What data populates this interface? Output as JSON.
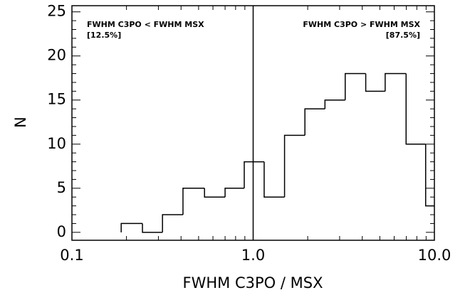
{
  "chart_data": {
    "type": "histogram",
    "xlabel": "FWHM C3PO / MSX",
    "ylabel": "N",
    "bins": [
      0.187,
      0.245,
      0.316,
      0.41,
      0.539,
      0.7,
      0.893,
      1.15,
      1.49,
      1.93,
      2.49,
      3.22,
      4.18,
      5.35,
      6.98,
      8.95,
      11.6
    ],
    "values": [
      1,
      0,
      2,
      5,
      4,
      5,
      8,
      4,
      11,
      14,
      15,
      18,
      16,
      18,
      10,
      3
    ],
    "color": "#000000",
    "xlog": true,
    "xlim": [
      0.1,
      10.0
    ],
    "ylim": [
      -0.9,
      25.7
    ],
    "xticks": [
      0.1,
      {
        "value": 1.0,
        "label": "1.0"
      },
      {
        "value": 10.0,
        "label": "10.0"
      }
    ],
    "xminorticks": [
      0.2,
      0.3,
      0.4,
      0.5,
      0.6,
      0.7,
      0.8,
      0.9,
      2,
      3,
      4,
      5,
      6,
      7,
      8,
      9
    ],
    "yticks": [
      0,
      5,
      10,
      15,
      20,
      25
    ],
    "yminorticks": [
      1,
      2,
      3,
      4,
      6,
      7,
      8,
      9,
      11,
      12,
      13,
      14,
      16,
      17,
      18,
      19,
      21,
      22,
      23,
      24
    ],
    "vline": 1.0,
    "annotations": [
      {
        "text": "FWHM C3PO < FWHM MSX",
        "sub": "[12.5%]"
      },
      {
        "text": "FWHM C3PO > FWHM MSX",
        "sub": "[87.5%]"
      }
    ]
  }
}
